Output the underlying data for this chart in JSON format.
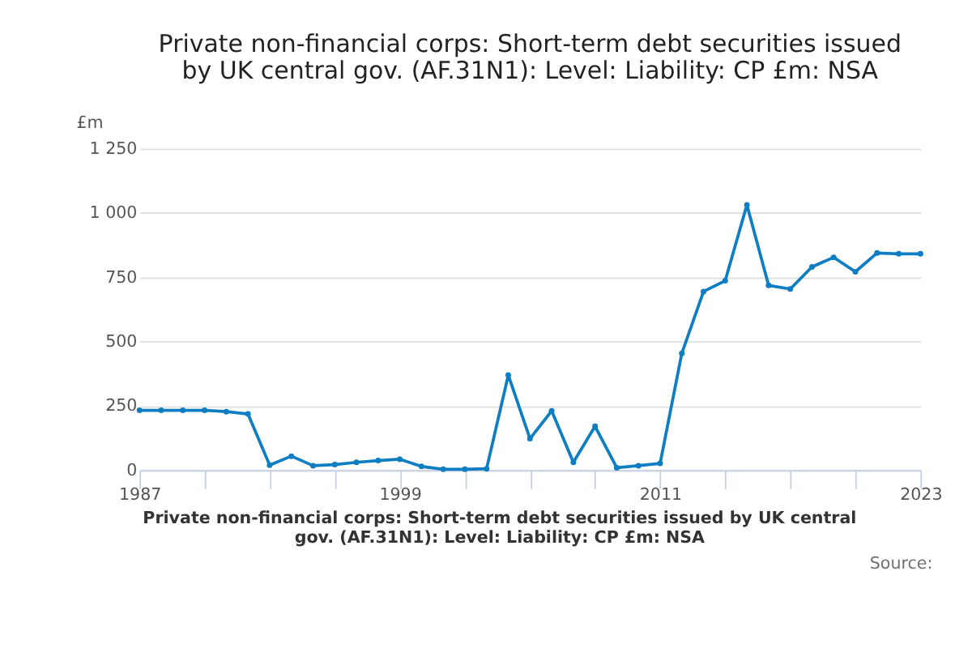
{
  "chart_data": {
    "type": "line",
    "title": "Private non-financial corps: Short-term debt securities issued by UK central gov. (AF.31N1): Level: Liability: CP £m: NSA",
    "ylabel": "£m",
    "x": [
      1987,
      1988,
      1989,
      1990,
      1991,
      1992,
      1993,
      1994,
      1995,
      1996,
      1997,
      1998,
      1999,
      2000,
      2001,
      2002,
      2003,
      2004,
      2005,
      2006,
      2007,
      2008,
      2009,
      2010,
      2011,
      2012,
      2013,
      2014,
      2015,
      2016,
      2017,
      2018,
      2019,
      2020,
      2021,
      2022,
      2023
    ],
    "series": [
      {
        "color": "#0f7dc2",
        "values": [
          232,
          232,
          232,
          232,
          227,
          218,
          19,
          54,
          17,
          21,
          30,
          37,
          42,
          14,
          3,
          3,
          5,
          369,
          122,
          230,
          30,
          170,
          9,
          17,
          26,
          454,
          694,
          736,
          1031,
          718,
          704,
          790,
          827,
          771,
          844,
          841,
          841
        ]
      }
    ],
    "xlim": [
      1987,
      2023
    ],
    "xticks": [
      1987,
      {
        "value": 1990,
        "label": null
      },
      {
        "value": 1993,
        "label": null
      },
      {
        "value": 1996,
        "label": null
      },
      1999,
      {
        "value": 2002,
        "label": null
      },
      {
        "value": 2005,
        "label": null
      },
      {
        "value": 2008,
        "label": null
      },
      2011,
      {
        "value": 2014,
        "label": null
      },
      {
        "value": 2017,
        "label": null
      },
      {
        "value": 2020,
        "label": null
      },
      2023
    ],
    "ylim": [
      0,
      1250
    ],
    "yticks": [
      0,
      250,
      500,
      750,
      {
        "value": 1000,
        "label": "1 000"
      },
      {
        "value": 1250,
        "label": "1 250"
      }
    ],
    "grid": "y",
    "marker": "circle",
    "line_style": "solid",
    "legend": false,
    "annotations": [
      "Private non-financial corps: Short-term debt securities issued by UK central gov. (AF.31N1): Level: Liability: CP £m: NSA",
      "Source:"
    ]
  }
}
